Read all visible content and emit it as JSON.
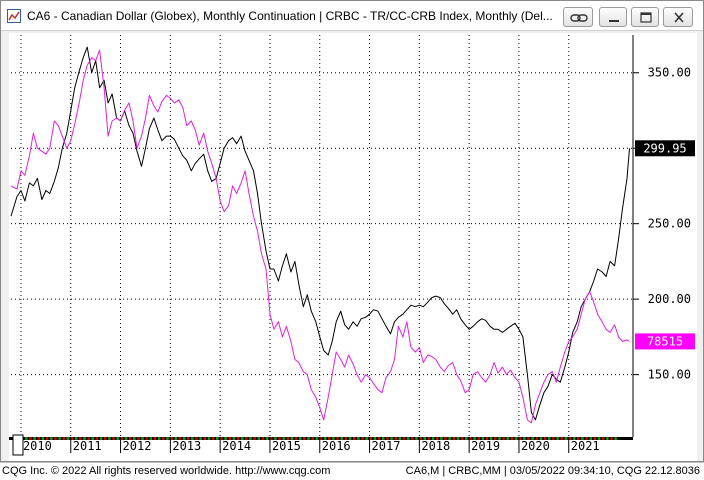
{
  "window": {
    "title": "CA6 - Canadian Dollar (Globex), Monthly Continuation   |   CRBC - TR/CC-CRB Index, Monthly (Del..."
  },
  "status": {
    "left": "CQG Inc. © 2022 All rights reserved worldwide. http://www.cqg.com",
    "right": "CA6,M  |  CRBC,MM | 03/05/2022 09:34:10, CQG 22.12.8036"
  },
  "colors": {
    "crbc": "#000000",
    "cad": "#e020e0",
    "grid": "#000000",
    "crbc_badge_bg": "#000000",
    "cad_badge_bg": "#ff00ff"
  },
  "chart_data": {
    "type": "line",
    "x_ticks": [
      "2010",
      "2011",
      "2012",
      "2013",
      "2014",
      "2015",
      "2016",
      "2017",
      "2018",
      "2019",
      "2020",
      "2021"
    ],
    "x_range": [
      2009.8,
      2022.25
    ],
    "y_ticks": [
      150,
      200,
      250,
      300,
      350
    ],
    "y_tick_labels": [
      "150.00",
      "200.00",
      "250.00",
      "",
      "350.00"
    ],
    "ylim": [
      110,
      375
    ],
    "last_labels": {
      "crbc": "299.95",
      "cad": "78515"
    },
    "grid": true,
    "series": [
      {
        "key": "crbc",
        "name": "CRBC",
        "points": [
          [
            2009.8,
            255
          ],
          [
            2009.92,
            268
          ],
          [
            2010.0,
            272
          ],
          [
            2010.08,
            265
          ],
          [
            2010.17,
            277
          ],
          [
            2010.25,
            275
          ],
          [
            2010.33,
            280
          ],
          [
            2010.42,
            266
          ],
          [
            2010.5,
            272
          ],
          [
            2010.58,
            270
          ],
          [
            2010.67,
            278
          ],
          [
            2010.75,
            287
          ],
          [
            2010.83,
            300
          ],
          [
            2010.92,
            310
          ],
          [
            2011.0,
            325
          ],
          [
            2011.08,
            340
          ],
          [
            2011.17,
            351
          ],
          [
            2011.25,
            360
          ],
          [
            2011.33,
            367
          ],
          [
            2011.42,
            350
          ],
          [
            2011.5,
            358
          ],
          [
            2011.58,
            340
          ],
          [
            2011.67,
            345
          ],
          [
            2011.75,
            330
          ],
          [
            2011.83,
            336
          ],
          [
            2011.92,
            320
          ],
          [
            2012.0,
            318
          ],
          [
            2012.08,
            325
          ],
          [
            2012.17,
            315
          ],
          [
            2012.25,
            310
          ],
          [
            2012.33,
            298
          ],
          [
            2012.42,
            288
          ],
          [
            2012.5,
            300
          ],
          [
            2012.58,
            313
          ],
          [
            2012.67,
            320
          ],
          [
            2012.75,
            312
          ],
          [
            2012.83,
            305
          ],
          [
            2012.92,
            308
          ],
          [
            2013.0,
            308
          ],
          [
            2013.08,
            306
          ],
          [
            2013.17,
            300
          ],
          [
            2013.25,
            295
          ],
          [
            2013.33,
            292
          ],
          [
            2013.42,
            285
          ],
          [
            2013.5,
            290
          ],
          [
            2013.58,
            293
          ],
          [
            2013.67,
            296
          ],
          [
            2013.75,
            285
          ],
          [
            2013.83,
            278
          ],
          [
            2013.92,
            280
          ],
          [
            2014.0,
            290
          ],
          [
            2014.08,
            300
          ],
          [
            2014.17,
            305
          ],
          [
            2014.25,
            307
          ],
          [
            2014.33,
            303
          ],
          [
            2014.42,
            308
          ],
          [
            2014.5,
            298
          ],
          [
            2014.58,
            292
          ],
          [
            2014.67,
            285
          ],
          [
            2014.75,
            270
          ],
          [
            2014.83,
            250
          ],
          [
            2014.92,
            232
          ],
          [
            2015.0,
            220
          ],
          [
            2015.08,
            220
          ],
          [
            2015.17,
            212
          ],
          [
            2015.25,
            222
          ],
          [
            2015.33,
            230
          ],
          [
            2015.42,
            218
          ],
          [
            2015.5,
            225
          ],
          [
            2015.58,
            210
          ],
          [
            2015.67,
            195
          ],
          [
            2015.75,
            203
          ],
          [
            2015.83,
            192
          ],
          [
            2015.92,
            185
          ],
          [
            2016.0,
            175
          ],
          [
            2016.08,
            166
          ],
          [
            2016.17,
            163
          ],
          [
            2016.25,
            172
          ],
          [
            2016.33,
            185
          ],
          [
            2016.42,
            192
          ],
          [
            2016.5,
            183
          ],
          [
            2016.58,
            180
          ],
          [
            2016.67,
            185
          ],
          [
            2016.75,
            182
          ],
          [
            2016.83,
            187
          ],
          [
            2016.92,
            188
          ],
          [
            2017.0,
            190
          ],
          [
            2017.08,
            193
          ],
          [
            2017.17,
            192
          ],
          [
            2017.25,
            187
          ],
          [
            2017.33,
            182
          ],
          [
            2017.42,
            177
          ],
          [
            2017.5,
            185
          ],
          [
            2017.58,
            188
          ],
          [
            2017.67,
            190
          ],
          [
            2017.75,
            193
          ],
          [
            2017.83,
            196
          ],
          [
            2017.92,
            195
          ],
          [
            2018.0,
            196
          ],
          [
            2018.08,
            195
          ],
          [
            2018.17,
            198
          ],
          [
            2018.25,
            201
          ],
          [
            2018.33,
            202
          ],
          [
            2018.42,
            201
          ],
          [
            2018.5,
            197
          ],
          [
            2018.58,
            194
          ],
          [
            2018.67,
            190
          ],
          [
            2018.75,
            193
          ],
          [
            2018.83,
            187
          ],
          [
            2018.92,
            183
          ],
          [
            2019.0,
            180
          ],
          [
            2019.08,
            182
          ],
          [
            2019.17,
            185
          ],
          [
            2019.25,
            187
          ],
          [
            2019.33,
            186
          ],
          [
            2019.42,
            182
          ],
          [
            2019.5,
            180
          ],
          [
            2019.58,
            180
          ],
          [
            2019.67,
            178
          ],
          [
            2019.75,
            180
          ],
          [
            2019.83,
            182
          ],
          [
            2019.92,
            184
          ],
          [
            2020.0,
            180
          ],
          [
            2020.08,
            175
          ],
          [
            2020.17,
            150
          ],
          [
            2020.25,
            125
          ],
          [
            2020.33,
            120
          ],
          [
            2020.42,
            130
          ],
          [
            2020.5,
            138
          ],
          [
            2020.58,
            142
          ],
          [
            2020.67,
            150
          ],
          [
            2020.75,
            147
          ],
          [
            2020.83,
            145
          ],
          [
            2020.92,
            155
          ],
          [
            2021.0,
            165
          ],
          [
            2021.08,
            178
          ],
          [
            2021.17,
            185
          ],
          [
            2021.25,
            195
          ],
          [
            2021.33,
            200
          ],
          [
            2021.42,
            205
          ],
          [
            2021.5,
            212
          ],
          [
            2021.58,
            220
          ],
          [
            2021.67,
            218
          ],
          [
            2021.75,
            215
          ],
          [
            2021.83,
            225
          ],
          [
            2021.92,
            222
          ],
          [
            2022.0,
            240
          ],
          [
            2022.08,
            260
          ],
          [
            2022.17,
            280
          ],
          [
            2022.22,
            299.95
          ]
        ]
      },
      {
        "key": "cad",
        "name": "CA6",
        "points": [
          [
            2009.8,
            275
          ],
          [
            2009.92,
            273
          ],
          [
            2010.0,
            285
          ],
          [
            2010.08,
            282
          ],
          [
            2010.17,
            295
          ],
          [
            2010.25,
            310
          ],
          [
            2010.33,
            300
          ],
          [
            2010.42,
            298
          ],
          [
            2010.5,
            296
          ],
          [
            2010.58,
            300
          ],
          [
            2010.67,
            318
          ],
          [
            2010.75,
            315
          ],
          [
            2010.83,
            308
          ],
          [
            2010.92,
            300
          ],
          [
            2011.0,
            305
          ],
          [
            2011.08,
            316
          ],
          [
            2011.17,
            330
          ],
          [
            2011.25,
            345
          ],
          [
            2011.33,
            355
          ],
          [
            2011.42,
            360
          ],
          [
            2011.5,
            358
          ],
          [
            2011.58,
            365
          ],
          [
            2011.67,
            340
          ],
          [
            2011.75,
            308
          ],
          [
            2011.83,
            318
          ],
          [
            2011.92,
            320
          ],
          [
            2012.0,
            318
          ],
          [
            2012.08,
            325
          ],
          [
            2012.17,
            330
          ],
          [
            2012.25,
            318
          ],
          [
            2012.33,
            300
          ],
          [
            2012.42,
            308
          ],
          [
            2012.5,
            320
          ],
          [
            2012.58,
            335
          ],
          [
            2012.67,
            328
          ],
          [
            2012.75,
            324
          ],
          [
            2012.83,
            331
          ],
          [
            2012.92,
            335
          ],
          [
            2013.0,
            333
          ],
          [
            2013.08,
            330
          ],
          [
            2013.17,
            332
          ],
          [
            2013.25,
            327
          ],
          [
            2013.33,
            315
          ],
          [
            2013.42,
            318
          ],
          [
            2013.5,
            312
          ],
          [
            2013.58,
            302
          ],
          [
            2013.67,
            310
          ],
          [
            2013.75,
            298
          ],
          [
            2013.83,
            290
          ],
          [
            2013.92,
            280
          ],
          [
            2014.0,
            265
          ],
          [
            2014.08,
            258
          ],
          [
            2014.17,
            262
          ],
          [
            2014.25,
            275
          ],
          [
            2014.33,
            270
          ],
          [
            2014.42,
            277
          ],
          [
            2014.5,
            285
          ],
          [
            2014.58,
            270
          ],
          [
            2014.67,
            255
          ],
          [
            2014.75,
            245
          ],
          [
            2014.83,
            230
          ],
          [
            2014.92,
            220
          ],
          [
            2015.0,
            190
          ],
          [
            2015.08,
            180
          ],
          [
            2015.17,
            185
          ],
          [
            2015.25,
            175
          ],
          [
            2015.33,
            182
          ],
          [
            2015.42,
            172
          ],
          [
            2015.5,
            160
          ],
          [
            2015.58,
            158
          ],
          [
            2015.67,
            152
          ],
          [
            2015.75,
            150
          ],
          [
            2015.83,
            140
          ],
          [
            2015.92,
            135
          ],
          [
            2016.0,
            128
          ],
          [
            2016.08,
            120
          ],
          [
            2016.17,
            135
          ],
          [
            2016.25,
            150
          ],
          [
            2016.33,
            165
          ],
          [
            2016.42,
            160
          ],
          [
            2016.5,
            155
          ],
          [
            2016.58,
            163
          ],
          [
            2016.67,
            157
          ],
          [
            2016.75,
            150
          ],
          [
            2016.83,
            145
          ],
          [
            2016.92,
            150
          ],
          [
            2017.0,
            148
          ],
          [
            2017.08,
            144
          ],
          [
            2017.17,
            140
          ],
          [
            2017.25,
            138
          ],
          [
            2017.33,
            148
          ],
          [
            2017.42,
            152
          ],
          [
            2017.5,
            160
          ],
          [
            2017.58,
            182
          ],
          [
            2017.67,
            175
          ],
          [
            2017.75,
            185
          ],
          [
            2017.83,
            168
          ],
          [
            2017.92,
            165
          ],
          [
            2018.0,
            168
          ],
          [
            2018.08,
            158
          ],
          [
            2018.17,
            163
          ],
          [
            2018.25,
            162
          ],
          [
            2018.33,
            160
          ],
          [
            2018.42,
            155
          ],
          [
            2018.5,
            152
          ],
          [
            2018.58,
            156
          ],
          [
            2018.67,
            158
          ],
          [
            2018.75,
            150
          ],
          [
            2018.83,
            146
          ],
          [
            2018.92,
            138
          ],
          [
            2019.0,
            140
          ],
          [
            2019.08,
            150
          ],
          [
            2019.17,
            152
          ],
          [
            2019.25,
            148
          ],
          [
            2019.33,
            145
          ],
          [
            2019.42,
            150
          ],
          [
            2019.5,
            158
          ],
          [
            2019.58,
            151
          ],
          [
            2019.67,
            155
          ],
          [
            2019.75,
            150
          ],
          [
            2019.83,
            153
          ],
          [
            2019.92,
            148
          ],
          [
            2020.0,
            145
          ],
          [
            2020.08,
            135
          ],
          [
            2020.17,
            120
          ],
          [
            2020.25,
            118
          ],
          [
            2020.33,
            130
          ],
          [
            2020.42,
            138
          ],
          [
            2020.5,
            145
          ],
          [
            2020.58,
            150
          ],
          [
            2020.67,
            152
          ],
          [
            2020.75,
            145
          ],
          [
            2020.83,
            155
          ],
          [
            2020.92,
            165
          ],
          [
            2021.0,
            172
          ],
          [
            2021.08,
            175
          ],
          [
            2021.17,
            180
          ],
          [
            2021.25,
            190
          ],
          [
            2021.33,
            200
          ],
          [
            2021.42,
            205
          ],
          [
            2021.5,
            198
          ],
          [
            2021.58,
            190
          ],
          [
            2021.67,
            185
          ],
          [
            2021.75,
            180
          ],
          [
            2021.83,
            178
          ],
          [
            2021.92,
            183
          ],
          [
            2022.0,
            175
          ],
          [
            2022.08,
            172
          ],
          [
            2022.17,
            173
          ],
          [
            2022.22,
            172
          ]
        ]
      }
    ]
  }
}
